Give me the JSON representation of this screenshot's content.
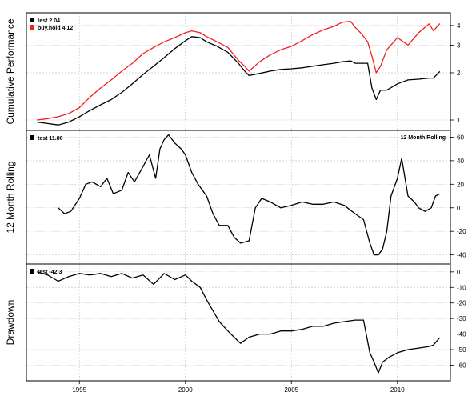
{
  "chart_data": [
    {
      "type": "line",
      "panel": "cumulative",
      "ylabel": "Cumulative Performance",
      "scale": "log",
      "ylim": [
        0.9,
        4.6
      ],
      "yticks": [
        1,
        2,
        3,
        4
      ],
      "series": [
        {
          "name": "buy.hold 4.12",
          "color": "#ee2222",
          "x": [
            1993.0,
            1993.5,
            1994.0,
            1994.5,
            1995.0,
            1995.5,
            1996.0,
            1996.5,
            1997.0,
            1997.5,
            1998.0,
            1998.5,
            1999.0,
            1999.5,
            2000.0,
            2000.3,
            2000.7,
            2001.0,
            2001.5,
            2002.0,
            2002.5,
            2002.8,
            2003.0,
            2003.5,
            2004.0,
            2004.5,
            2005.0,
            2005.5,
            2006.0,
            2006.5,
            2007.0,
            2007.4,
            2007.8,
            2008.0,
            2008.3,
            2008.6,
            2008.8,
            2009.0,
            2009.2,
            2009.5,
            2010.0,
            2010.5,
            2011.0,
            2011.5,
            2011.7,
            2012.0
          ],
          "y": [
            1.0,
            1.02,
            1.05,
            1.1,
            1.2,
            1.4,
            1.6,
            1.8,
            2.05,
            2.3,
            2.65,
            2.9,
            3.15,
            3.35,
            3.6,
            3.7,
            3.6,
            3.4,
            3.15,
            2.9,
            2.4,
            2.2,
            2.05,
            2.35,
            2.6,
            2.8,
            2.95,
            3.2,
            3.5,
            3.75,
            3.95,
            4.2,
            4.25,
            3.9,
            3.55,
            3.15,
            2.55,
            2.0,
            2.2,
            2.8,
            3.35,
            3.0,
            3.6,
            4.1,
            3.7,
            4.12
          ]
        },
        {
          "name": "test 2.04",
          "color": "#000000",
          "x": [
            1993.0,
            1993.5,
            1994.0,
            1994.5,
            1995.0,
            1995.5,
            1996.0,
            1996.5,
            1997.0,
            1997.5,
            1998.0,
            1998.5,
            1999.0,
            1999.5,
            2000.0,
            2000.3,
            2000.7,
            2001.0,
            2001.5,
            2002.0,
            2002.5,
            2002.8,
            2003.0,
            2003.5,
            2004.0,
            2004.5,
            2005.0,
            2005.5,
            2006.0,
            2006.5,
            2007.0,
            2007.4,
            2007.8,
            2008.0,
            2008.3,
            2008.6,
            2008.8,
            2009.0,
            2009.2,
            2009.5,
            2010.0,
            2010.5,
            2011.0,
            2011.5,
            2011.7,
            2012.0
          ],
          "y": [
            0.97,
            0.95,
            0.93,
            0.97,
            1.05,
            1.15,
            1.25,
            1.35,
            1.5,
            1.7,
            1.95,
            2.2,
            2.5,
            2.85,
            3.2,
            3.4,
            3.35,
            3.15,
            2.95,
            2.7,
            2.3,
            2.05,
            1.92,
            1.98,
            2.05,
            2.1,
            2.12,
            2.15,
            2.2,
            2.25,
            2.3,
            2.35,
            2.38,
            2.3,
            2.3,
            2.3,
            1.6,
            1.35,
            1.55,
            1.55,
            1.7,
            1.8,
            1.82,
            1.85,
            1.85,
            2.04
          ]
        }
      ]
    },
    {
      "type": "line",
      "panel": "rolling",
      "ylabel": "12 Month Rolling",
      "annotation": "12 Month Rolling",
      "ylim": [
        -45,
        63
      ],
      "yticks": [
        -40,
        -20,
        0,
        20,
        40,
        60
      ],
      "series": [
        {
          "name": "test 11.86",
          "color": "#000000",
          "x": [
            1994.0,
            1994.3,
            1994.6,
            1995.0,
            1995.3,
            1995.6,
            1996.0,
            1996.3,
            1996.6,
            1997.0,
            1997.3,
            1997.6,
            1998.0,
            1998.3,
            1998.6,
            1998.8,
            1999.0,
            1999.2,
            1999.5,
            1999.8,
            2000.0,
            2000.3,
            2000.6,
            2001.0,
            2001.3,
            2001.6,
            2002.0,
            2002.3,
            2002.6,
            2003.0,
            2003.3,
            2003.6,
            2004.0,
            2004.5,
            2005.0,
            2005.5,
            2006.0,
            2006.5,
            2007.0,
            2007.5,
            2008.0,
            2008.4,
            2008.7,
            2008.9,
            2009.1,
            2009.3,
            2009.5,
            2009.7,
            2010.0,
            2010.2,
            2010.5,
            2010.8,
            2011.0,
            2011.3,
            2011.6,
            2011.8,
            2012.0
          ],
          "y": [
            0,
            -5,
            -3,
            8,
            20,
            22,
            18,
            25,
            12,
            15,
            30,
            22,
            35,
            45,
            25,
            50,
            58,
            62,
            55,
            50,
            45,
            30,
            20,
            10,
            -5,
            -15,
            -15,
            -25,
            -30,
            -28,
            0,
            8,
            5,
            0,
            2,
            5,
            3,
            3,
            5,
            2,
            -5,
            -10,
            -30,
            -40,
            -40,
            -35,
            -20,
            10,
            25,
            42,
            10,
            5,
            0,
            -3,
            0,
            10,
            11.86
          ]
        }
      ]
    },
    {
      "type": "line",
      "panel": "drawdown",
      "ylabel": "Drawdown",
      "ylim": [
        -68,
        3
      ],
      "yticks": [
        -60,
        -50,
        -40,
        -30,
        -20,
        -10,
        0
      ],
      "series": [
        {
          "name": "test -42.3",
          "color": "#000000",
          "x": [
            1993.0,
            1993.5,
            1994.0,
            1994.5,
            1995.0,
            1995.5,
            1996.0,
            1996.5,
            1997.0,
            1997.5,
            1998.0,
            1998.5,
            1999.0,
            1999.5,
            2000.0,
            2000.3,
            2000.7,
            2001.0,
            2001.3,
            2001.6,
            2002.0,
            2002.3,
            2002.6,
            2002.8,
            2003.0,
            2003.5,
            2004.0,
            2004.5,
            2005.0,
            2005.5,
            2006.0,
            2006.5,
            2007.0,
            2007.5,
            2008.0,
            2008.4,
            2008.7,
            2008.9,
            2009.1,
            2009.3,
            2009.6,
            2010.0,
            2010.5,
            2011.0,
            2011.5,
            2011.7,
            2012.0
          ],
          "y": [
            0,
            -2,
            -6,
            -3,
            -1,
            -2,
            -1,
            -3,
            -1,
            -4,
            -2,
            -8,
            -1,
            -5,
            -2,
            -6,
            -10,
            -18,
            -25,
            -32,
            -38,
            -42,
            -46,
            -44,
            -42,
            -40,
            -40,
            -38,
            -38,
            -37,
            -35,
            -35,
            -33,
            -32,
            -31,
            -31,
            -52,
            -58,
            -65,
            -58,
            -55,
            -52,
            -50,
            -49,
            -48,
            -47,
            -42.3
          ]
        }
      ]
    }
  ],
  "x_axis": {
    "min": 1992.5,
    "max": 2012.5,
    "ticks": [
      "1995",
      "2000",
      "2005",
      "2010"
    ]
  },
  "legends": {
    "cumulative": [
      {
        "label": "test 2.04",
        "color": "#000000"
      },
      {
        "label": "buy.hold 4.12",
        "color": "#ee2222"
      }
    ],
    "rolling": [
      {
        "label": "test 11.86",
        "color": "#000000"
      }
    ],
    "drawdown": [
      {
        "label": "test -42.3",
        "color": "#000000"
      }
    ]
  },
  "grid": true
}
